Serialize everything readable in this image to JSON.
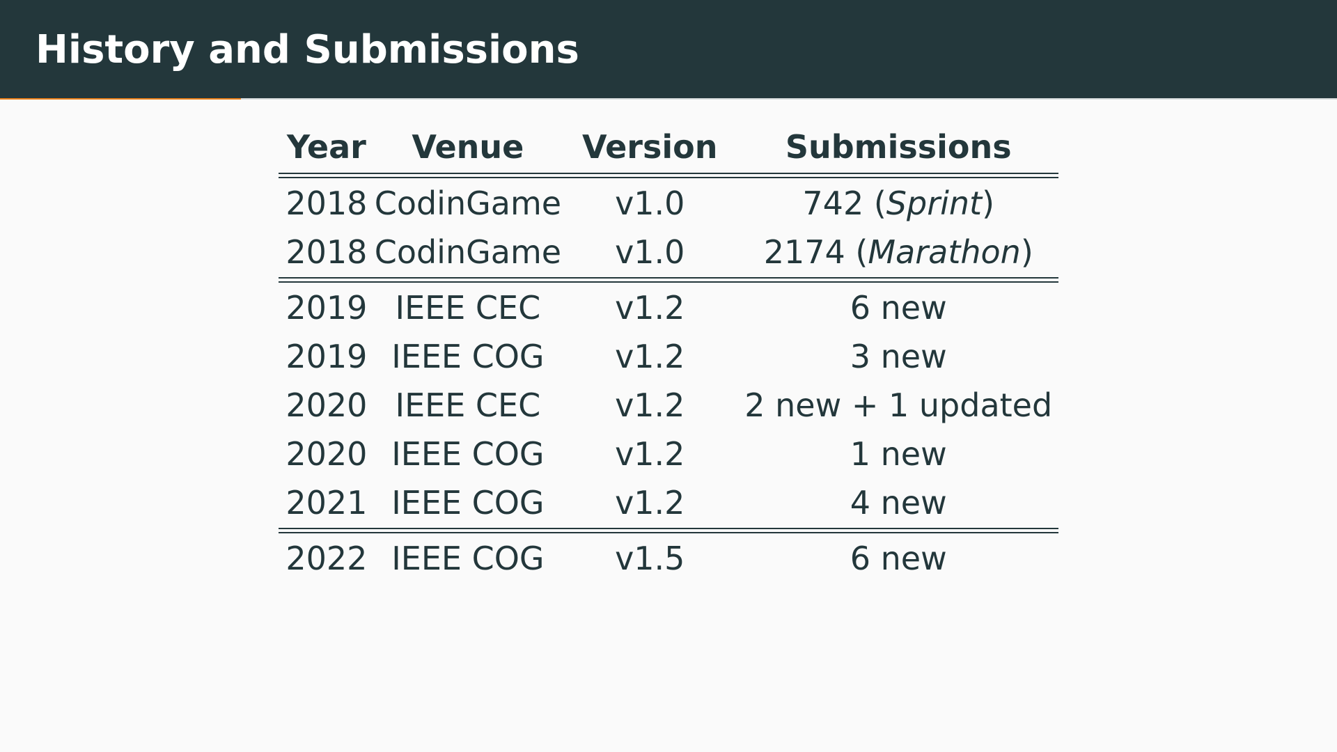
{
  "slide": {
    "title": "History and Submissions",
    "progress_fraction": 0.18,
    "colors": {
      "header_bg": "#23373b",
      "accent": "#eb811b",
      "background": "#fafafa",
      "text": "#23373b"
    }
  },
  "table": {
    "headers": [
      "Year",
      "Venue",
      "Version",
      "Submissions"
    ],
    "groups": [
      [
        {
          "year": "2018",
          "venue": "CodinGame",
          "version": "v1.0",
          "count": "742",
          "note": "Sprint"
        },
        {
          "year": "2018",
          "venue": "CodinGame",
          "version": "v1.0",
          "count": "2174",
          "note": "Marathon"
        }
      ],
      [
        {
          "year": "2019",
          "venue": "IEEE CEC",
          "version": "v1.2",
          "count": "6 new",
          "note": ""
        },
        {
          "year": "2019",
          "venue": "IEEE COG",
          "version": "v1.2",
          "count": "3 new",
          "note": ""
        },
        {
          "year": "2020",
          "venue": "IEEE CEC",
          "version": "v1.2",
          "count": "2 new + 1 updated",
          "note": ""
        },
        {
          "year": "2020",
          "venue": "IEEE COG",
          "version": "v1.2",
          "count": "1 new",
          "note": ""
        },
        {
          "year": "2021",
          "venue": "IEEE COG",
          "version": "v1.2",
          "count": "4 new",
          "note": ""
        }
      ],
      [
        {
          "year": "2022",
          "venue": "IEEE COG",
          "version": "v1.5",
          "count": "6 new",
          "note": ""
        }
      ]
    ]
  }
}
